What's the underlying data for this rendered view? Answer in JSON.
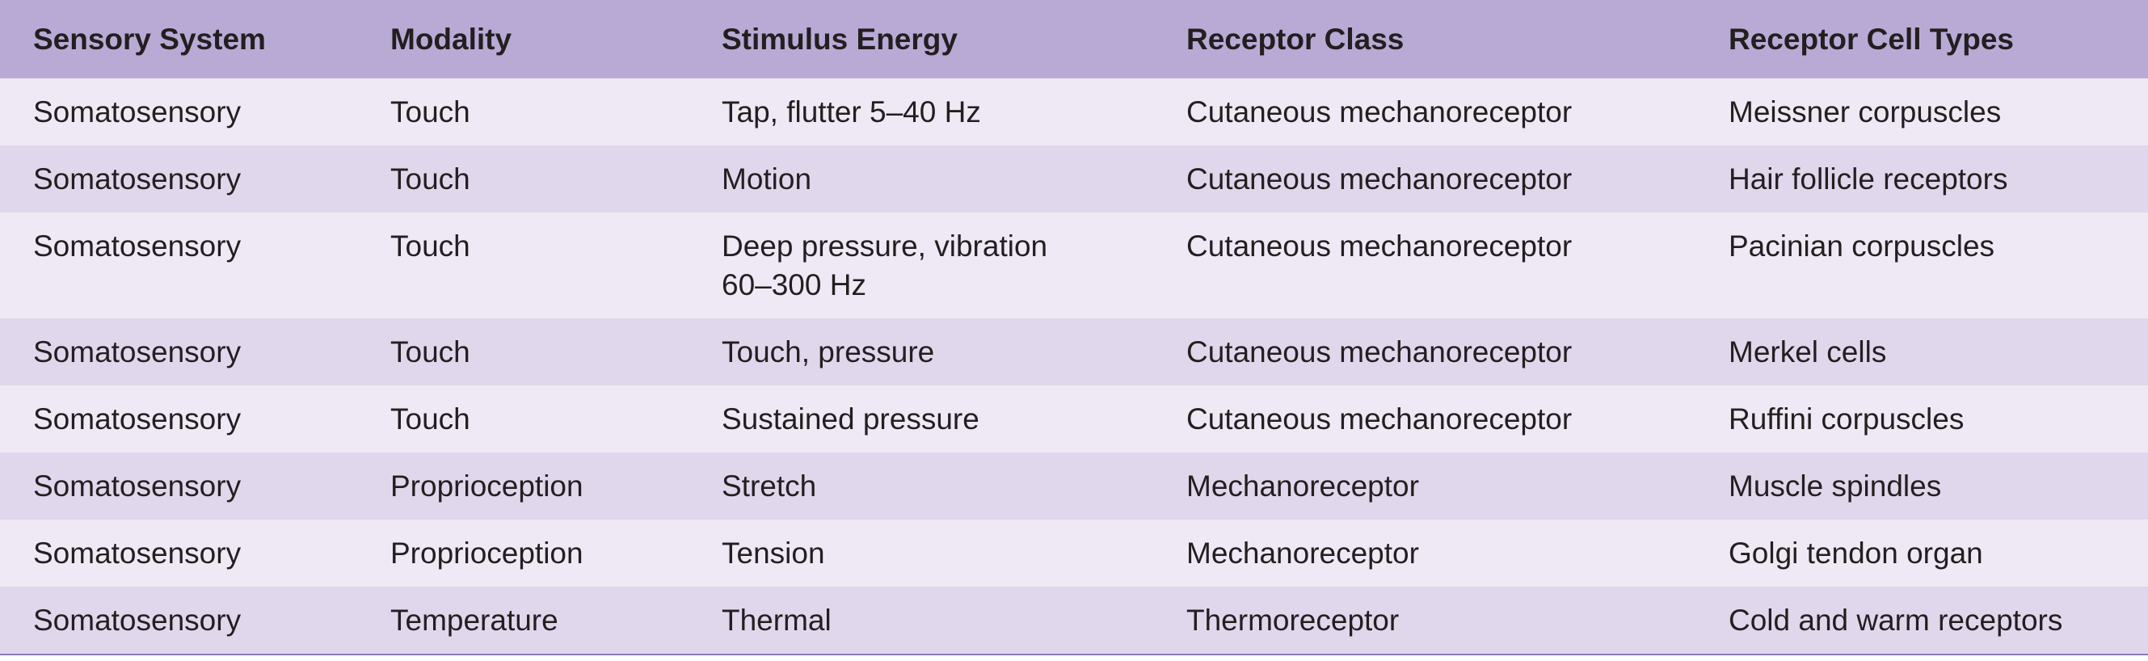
{
  "table": {
    "header": [
      "Sensory System",
      "Modality",
      "Stimulus Energy",
      "Receptor Class",
      "Receptor Cell Types"
    ],
    "rows": [
      [
        "Somatosensory",
        "Touch",
        "Tap, flutter 5–40 Hz",
        "Cutaneous mechanoreceptor",
        "Meissner corpuscles"
      ],
      [
        "Somatosensory",
        "Touch",
        "Motion",
        "Cutaneous mechanoreceptor",
        "Hair follicle receptors"
      ],
      [
        "Somatosensory",
        "Touch",
        "Deep pressure, vibration 60–300 Hz",
        "Cutaneous mechanoreceptor",
        "Pacinian corpuscles"
      ],
      [
        "Somatosensory",
        "Touch",
        "Touch, pressure",
        "Cutaneous mechanoreceptor",
        "Merkel cells"
      ],
      [
        "Somatosensory",
        "Touch",
        "Sustained pressure",
        "Cutaneous mechanoreceptor",
        "Ruffini corpuscles"
      ],
      [
        "Somatosensory",
        "Proprioception",
        "Stretch",
        "Mechanoreceptor",
        "Muscle spindles"
      ],
      [
        "Somatosensory",
        "Proprioception",
        "Tension",
        "Mechanoreceptor",
        "Golgi tendon organ"
      ],
      [
        "Somatosensory",
        "Temperature",
        "Thermal",
        "Thermoreceptor",
        "Cold and warm receptors"
      ]
    ]
  }
}
